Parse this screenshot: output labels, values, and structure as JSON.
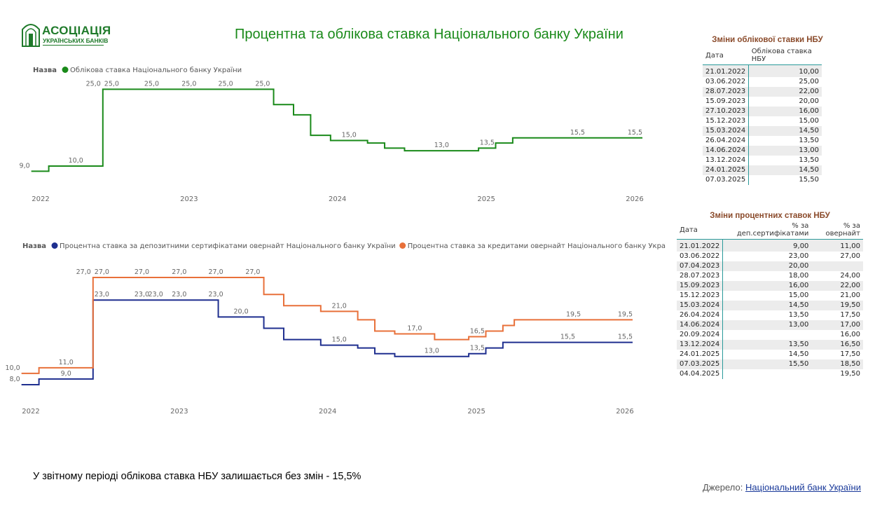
{
  "logo": {
    "name": "АСОЦІАЦІЯ",
    "subtitle": "УКРАЇНСЬКИХ БАНКІВ"
  },
  "title": "Процентна та облікова ставка Національного банку України",
  "colors": {
    "discount": "#1a8a1a",
    "deposit": "#1f2f8f",
    "credit": "#e8703a",
    "title": "#1a8a1a",
    "table_title": "#8a4a2a",
    "table_rule": "#2a9a9a"
  },
  "chart_data": [
    {
      "type": "line",
      "step": true,
      "legend_title": "Назва",
      "legend_position": "top-left",
      "x_ticks": [
        "2022",
        "2023",
        "2024",
        "2025",
        "2026"
      ],
      "x_range": [
        "2022-01-01",
        "2026-01-01"
      ],
      "grid": false,
      "series": [
        {
          "name": "Облікова ставка Національного банку України",
          "color": "#1a8a1a",
          "points": [
            {
              "date": "2021-12-09",
              "value": 9.0,
              "label": "9,0"
            },
            {
              "date": "2022-01-21",
              "value": 10.0,
              "label": "10,0"
            },
            {
              "date": "2022-06-03",
              "value": 25.0,
              "label": "25,0"
            },
            {
              "date": "2023-07-28",
              "value": 22.0
            },
            {
              "date": "2023-09-15",
              "value": 20.0
            },
            {
              "date": "2023-10-27",
              "value": 16.0
            },
            {
              "date": "2023-12-15",
              "value": 15.0,
              "label": "15,0"
            },
            {
              "date": "2024-03-15",
              "value": 14.5
            },
            {
              "date": "2024-04-26",
              "value": 13.5
            },
            {
              "date": "2024-06-14",
              "value": 13.0,
              "label": "13,0"
            },
            {
              "date": "2024-12-13",
              "value": 13.5,
              "label": "13,5"
            },
            {
              "date": "2025-01-24",
              "value": 14.5
            },
            {
              "date": "2025-03-07",
              "value": 15.5,
              "label": "15,5"
            }
          ],
          "extra_labels": [
            {
              "date": "2022-06-03",
              "value": 25.0,
              "text": "25,0",
              "anchor": "left"
            },
            {
              "date": "2022-10-01",
              "value": 25.0,
              "text": "25,0"
            },
            {
              "date": "2023-01-01",
              "value": 25.0,
              "text": "25,0"
            },
            {
              "date": "2023-04-01",
              "value": 25.0,
              "text": "25,0"
            },
            {
              "date": "2023-07-01",
              "value": 25.0,
              "text": "25,0"
            },
            {
              "date": "2025-12-31",
              "value": 15.5,
              "text": "15,5"
            }
          ],
          "end_date": "2026-01-20"
        }
      ]
    },
    {
      "type": "line",
      "step": true,
      "legend_title": "Назва",
      "legend_position": "top-left",
      "x_ticks": [
        "2022",
        "2023",
        "2024",
        "2025",
        "2026"
      ],
      "x_range": [
        "2022-01-01",
        "2026-01-01"
      ],
      "grid": false,
      "series": [
        {
          "name": "Процентна ставка за депозитними сертифікатами овернайт Національного банку України",
          "color": "#1f2f8f",
          "points": [
            {
              "date": "2021-12-09",
              "value": 8.0,
              "label": "8,0"
            },
            {
              "date": "2022-01-21",
              "value": 9.0,
              "label": "9,0"
            },
            {
              "date": "2022-06-03",
              "value": 23.0,
              "label": "23,0"
            },
            {
              "date": "2023-04-07",
              "value": 20.0,
              "label": "20,0"
            },
            {
              "date": "2023-07-28",
              "value": 18.0
            },
            {
              "date": "2023-09-15",
              "value": 16.0
            },
            {
              "date": "2023-12-15",
              "value": 15.0,
              "label": "15,0"
            },
            {
              "date": "2024-03-15",
              "value": 14.5
            },
            {
              "date": "2024-04-26",
              "value": 13.5
            },
            {
              "date": "2024-06-14",
              "value": 13.0,
              "label": "13,0"
            },
            {
              "date": "2024-12-13",
              "value": 13.5,
              "label": "13,5"
            },
            {
              "date": "2025-01-24",
              "value": 14.5
            },
            {
              "date": "2025-03-07",
              "value": 15.5,
              "label": "15,5"
            }
          ],
          "extra_labels": [
            {
              "date": "2022-06-03",
              "value": 23.0,
              "text": "23,0",
              "anchor": "left"
            },
            {
              "date": "2022-10-01",
              "value": 23.0,
              "text": "23,0"
            },
            {
              "date": "2023-01-01",
              "value": 23.0,
              "text": "23,0"
            },
            {
              "date": "2023-04-01",
              "value": 23.0,
              "text": "23,0"
            },
            {
              "date": "2025-12-31",
              "value": 15.5,
              "text": "15,5"
            }
          ],
          "end_date": "2026-01-20"
        },
        {
          "name": "Процентна ставка за кредитами овернайт Національного банку України",
          "color": "#e8703a",
          "points": [
            {
              "date": "2021-12-09",
              "value": 10.0,
              "label": "10,0"
            },
            {
              "date": "2022-01-21",
              "value": 11.0,
              "label": "11,0"
            },
            {
              "date": "2022-06-03",
              "value": 27.0,
              "label": "27,0"
            },
            {
              "date": "2023-07-28",
              "value": 24.0
            },
            {
              "date": "2023-09-15",
              "value": 22.0
            },
            {
              "date": "2023-12-15",
              "value": 21.0,
              "label": "21,0"
            },
            {
              "date": "2024-03-15",
              "value": 19.5
            },
            {
              "date": "2024-04-26",
              "value": 17.5
            },
            {
              "date": "2024-06-14",
              "value": 17.0,
              "label": "17,0"
            },
            {
              "date": "2024-09-20",
              "value": 16.0
            },
            {
              "date": "2024-12-13",
              "value": 16.5,
              "label": "16,5"
            },
            {
              "date": "2025-01-24",
              "value": 17.5
            },
            {
              "date": "2025-03-07",
              "value": 18.5
            },
            {
              "date": "2025-04-04",
              "value": 19.5,
              "label": "19,5"
            }
          ],
          "extra_labels": [
            {
              "date": "2022-06-03",
              "value": 27.0,
              "text": "27,0",
              "anchor": "left"
            },
            {
              "date": "2022-10-01",
              "value": 27.0,
              "text": "27,0"
            },
            {
              "date": "2023-01-01",
              "value": 27.0,
              "text": "27,0"
            },
            {
              "date": "2023-04-01",
              "value": 27.0,
              "text": "27,0"
            },
            {
              "date": "2023-07-01",
              "value": 27.0,
              "text": "27,0"
            },
            {
              "date": "2025-12-31",
              "value": 19.5,
              "text": "19,5"
            }
          ],
          "end_date": "2026-01-20"
        }
      ]
    }
  ],
  "discount_table": {
    "title": "Зміни облікової ставки НБУ",
    "columns": [
      "Дата",
      "Облікова ставка НБУ"
    ],
    "rows": [
      [
        "21.01.2022",
        "10,00"
      ],
      [
        "03.06.2022",
        "25,00"
      ],
      [
        "28.07.2023",
        "22,00"
      ],
      [
        "15.09.2023",
        "20,00"
      ],
      [
        "27.10.2023",
        "16,00"
      ],
      [
        "15.12.2023",
        "15,00"
      ],
      [
        "15.03.2024",
        "14,50"
      ],
      [
        "26.04.2024",
        "13,50"
      ],
      [
        "14.06.2024",
        "13,00"
      ],
      [
        "13.12.2024",
        "13,50"
      ],
      [
        "24.01.2025",
        "14,50"
      ],
      [
        "07.03.2025",
        "15,50"
      ]
    ]
  },
  "rates_table": {
    "title": "Зміни процентних ставок НБУ",
    "columns": [
      "Дата",
      "% за деп.сертифікатами",
      "% за овернайт"
    ],
    "rows": [
      [
        "21.01.2022",
        "9,00",
        "11,00"
      ],
      [
        "03.06.2022",
        "23,00",
        "27,00"
      ],
      [
        "07.04.2023",
        "20,00",
        ""
      ],
      [
        "28.07.2023",
        "18,00",
        "24,00"
      ],
      [
        "15.09.2023",
        "16,00",
        "22,00"
      ],
      [
        "15.12.2023",
        "15,00",
        "21,00"
      ],
      [
        "15.03.2024",
        "14,50",
        "19,50"
      ],
      [
        "26.04.2024",
        "13,50",
        "17,50"
      ],
      [
        "14.06.2024",
        "13,00",
        "17,00"
      ],
      [
        "20.09.2024",
        "",
        "16,00"
      ],
      [
        "13.12.2024",
        "13,50",
        "16,50"
      ],
      [
        "24.01.2025",
        "14,50",
        "17,50"
      ],
      [
        "07.03.2025",
        "15,50",
        "18,50"
      ],
      [
        "04.04.2025",
        "",
        "19,50"
      ]
    ]
  },
  "note": "У звітному періоді облікова ставка НБУ залишається без змін - 15,5%",
  "source": {
    "label": "Джерело:",
    "link_text": "Національний банк України"
  }
}
